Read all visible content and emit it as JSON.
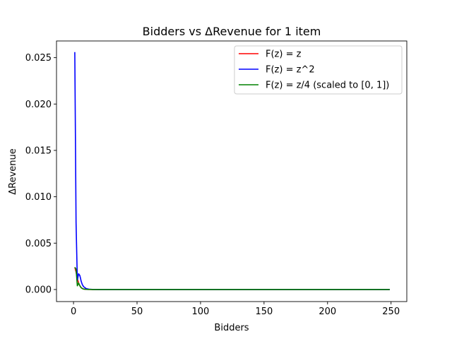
{
  "chart_data": {
    "type": "line",
    "title": "Bidders vs ΔRevenue for 1 item",
    "xlabel": "Bidders",
    "ylabel": "ΔRevenue",
    "xlim": [
      -13.4,
      262.4
    ],
    "ylim": [
      -0.0013,
      0.0268
    ],
    "xticks": [
      0,
      50,
      100,
      150,
      200,
      250
    ],
    "xtick_labels": [
      "0",
      "50",
      "100",
      "150",
      "200",
      "250"
    ],
    "yticks": [
      0.0,
      0.005,
      0.01,
      0.015,
      0.02,
      0.025
    ],
    "ytick_labels": [
      "0.000",
      "0.005",
      "0.010",
      "0.015",
      "0.020",
      "0.025"
    ],
    "grid": false,
    "legend_position": "top-right",
    "series": [
      {
        "name": "F(z) = z",
        "color": "#ff0000",
        "x": [
          1,
          2,
          3,
          4,
          5,
          6,
          7,
          8,
          10,
          12,
          15,
          20,
          30,
          50,
          100,
          150,
          200,
          249
        ],
        "values": [
          0.0024,
          0.0019,
          0.0012,
          0.0007,
          0.0004,
          0.0002,
          0.0001,
          5e-05,
          2e-05,
          1e-05,
          0.0,
          0.0,
          0.0,
          0.0,
          0.0,
          0.0,
          0.0,
          0.0
        ]
      },
      {
        "name": "F(z) = z^2",
        "color": "#0000ff",
        "x": [
          1,
          2,
          3,
          4,
          5,
          6,
          7,
          8,
          10,
          12,
          15,
          20,
          30,
          50,
          100,
          150,
          200,
          249
        ],
        "values": [
          0.0256,
          0.0072,
          0.001,
          0.0017,
          0.0015,
          0.0009,
          0.0005,
          0.0003,
          0.0001,
          4e-05,
          1e-05,
          0.0,
          0.0,
          0.0,
          0.0,
          0.0,
          0.0,
          0.0
        ]
      },
      {
        "name": "F(z) = z/4 (scaled to [0, 1])",
        "color": "#008000",
        "x": [
          1,
          2,
          3,
          4,
          5,
          6,
          7,
          8,
          10,
          12,
          15,
          20,
          30,
          50,
          100,
          150,
          200,
          249
        ],
        "values": [
          0.0024,
          0.0022,
          0.0004,
          0.0007,
          0.0004,
          0.0002,
          0.0001,
          5e-05,
          2e-05,
          1e-05,
          0.0,
          0.0,
          0.0,
          0.0,
          0.0,
          0.0,
          0.0,
          0.0
        ]
      }
    ]
  }
}
